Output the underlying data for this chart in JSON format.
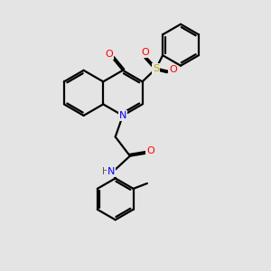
{
  "background_color": "#e4e4e4",
  "line_color": "#000000",
  "bond_width": 1.6,
  "fig_size": [
    3.0,
    3.0
  ],
  "dpi": 100,
  "N_blue": "#0000ff",
  "O_red": "#ff0000",
  "S_yellow": "#bbaa00",
  "H_gray": "#555555",
  "xlim": [
    0,
    10
  ],
  "ylim": [
    0,
    10
  ]
}
